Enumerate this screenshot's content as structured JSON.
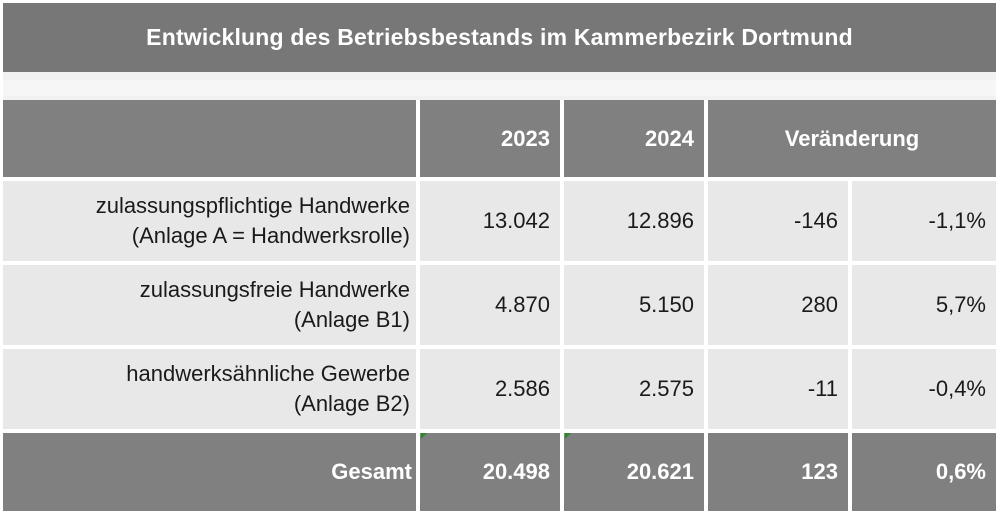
{
  "title": "Entwicklung des Betriebsbestands im Kammerbezirk Dortmund",
  "header": {
    "col_2023": "2023",
    "col_2024": "2024",
    "col_change": "Veränderung"
  },
  "rows": [
    {
      "label_line1": "zulassungspflichtige Handwerke",
      "label_line2": "(Anlage A = Handwerksrolle)",
      "v2023": "13.042",
      "v2024": "12.896",
      "abs": "-146",
      "pct": "-1,1%"
    },
    {
      "label_line1": "zulassungsfreie Handwerke",
      "label_line2": "(Anlage B1)",
      "v2023": "4.870",
      "v2024": "5.150",
      "abs": "280",
      "pct": "5,7%"
    },
    {
      "label_line1": "handwerksähnliche Gewerbe",
      "label_line2": "(Anlage B2)",
      "v2023": "2.586",
      "v2024": "2.575",
      "abs": "-11",
      "pct": "-0,4%"
    }
  ],
  "total": {
    "label": "Gesamt",
    "v2023": "20.498",
    "v2024": "20.621",
    "abs": "123",
    "pct": "0,6%"
  },
  "colors": {
    "header_bg": "#808080",
    "body_bg": "#e8e8e8",
    "title_bg": "#777777"
  }
}
